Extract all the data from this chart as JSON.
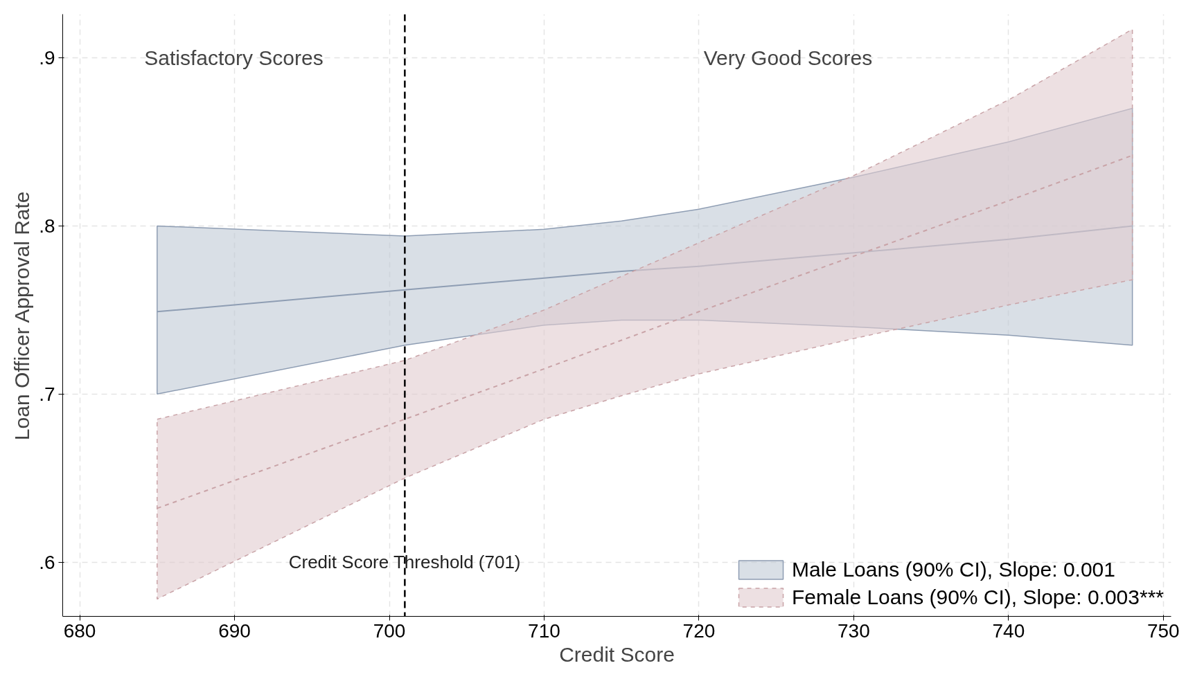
{
  "chart_data": {
    "type": "line",
    "xlabel": "Credit Score",
    "ylabel": "Loan Officer Approval Rate",
    "xlim": [
      678.9,
      750.5
    ],
    "ylim": [
      0.5677,
      0.926
    ],
    "xticks": [
      680,
      690,
      700,
      710,
      720,
      730,
      740,
      750
    ],
    "yticks": [
      {
        "value": 0.6,
        "label": ".6"
      },
      {
        "value": 0.7,
        "label": ".7"
      },
      {
        "value": 0.8,
        "label": ".8"
      },
      {
        "value": 0.9,
        "label": ".9"
      }
    ],
    "grid": true,
    "legend": "bottom right",
    "series": [
      {
        "name": "Male Loans (90% CI), Slope: 0.001",
        "color": "#8e9db3",
        "line_style": "solid",
        "x": [
          685,
          701,
          710,
          715,
          720,
          730,
          740,
          748
        ],
        "values": [
          0.749,
          0.762,
          0.769,
          0.773,
          0.776,
          0.784,
          0.792,
          0.8
        ],
        "lower": [
          0.7,
          0.729,
          0.741,
          0.744,
          0.744,
          0.74,
          0.735,
          0.729
        ],
        "upper": [
          0.8,
          0.794,
          0.798,
          0.803,
          0.81,
          0.829,
          0.85,
          0.87
        ]
      },
      {
        "name": "Female Loans (90% CI), Slope: 0.003***",
        "color": "#c9a3a7",
        "line_style": "dashed",
        "x": [
          685,
          701,
          710,
          715,
          720,
          730,
          740,
          748
        ],
        "values": [
          0.632,
          0.685,
          0.715,
          0.732,
          0.749,
          0.782,
          0.815,
          0.842
        ],
        "lower": [
          0.578,
          0.65,
          0.685,
          0.699,
          0.712,
          0.733,
          0.753,
          0.768
        ],
        "upper": [
          0.685,
          0.72,
          0.75,
          0.77,
          0.79,
          0.83,
          0.875,
          0.917
        ]
      }
    ],
    "ref_lines": [
      {
        "axis": "x",
        "value": 701,
        "label": "Credit Score Threshold (701)",
        "color": "#000000",
        "line_style": "dashed"
      }
    ],
    "annotations": [
      "Satisfactory Scores",
      "Very Good Scores"
    ]
  }
}
